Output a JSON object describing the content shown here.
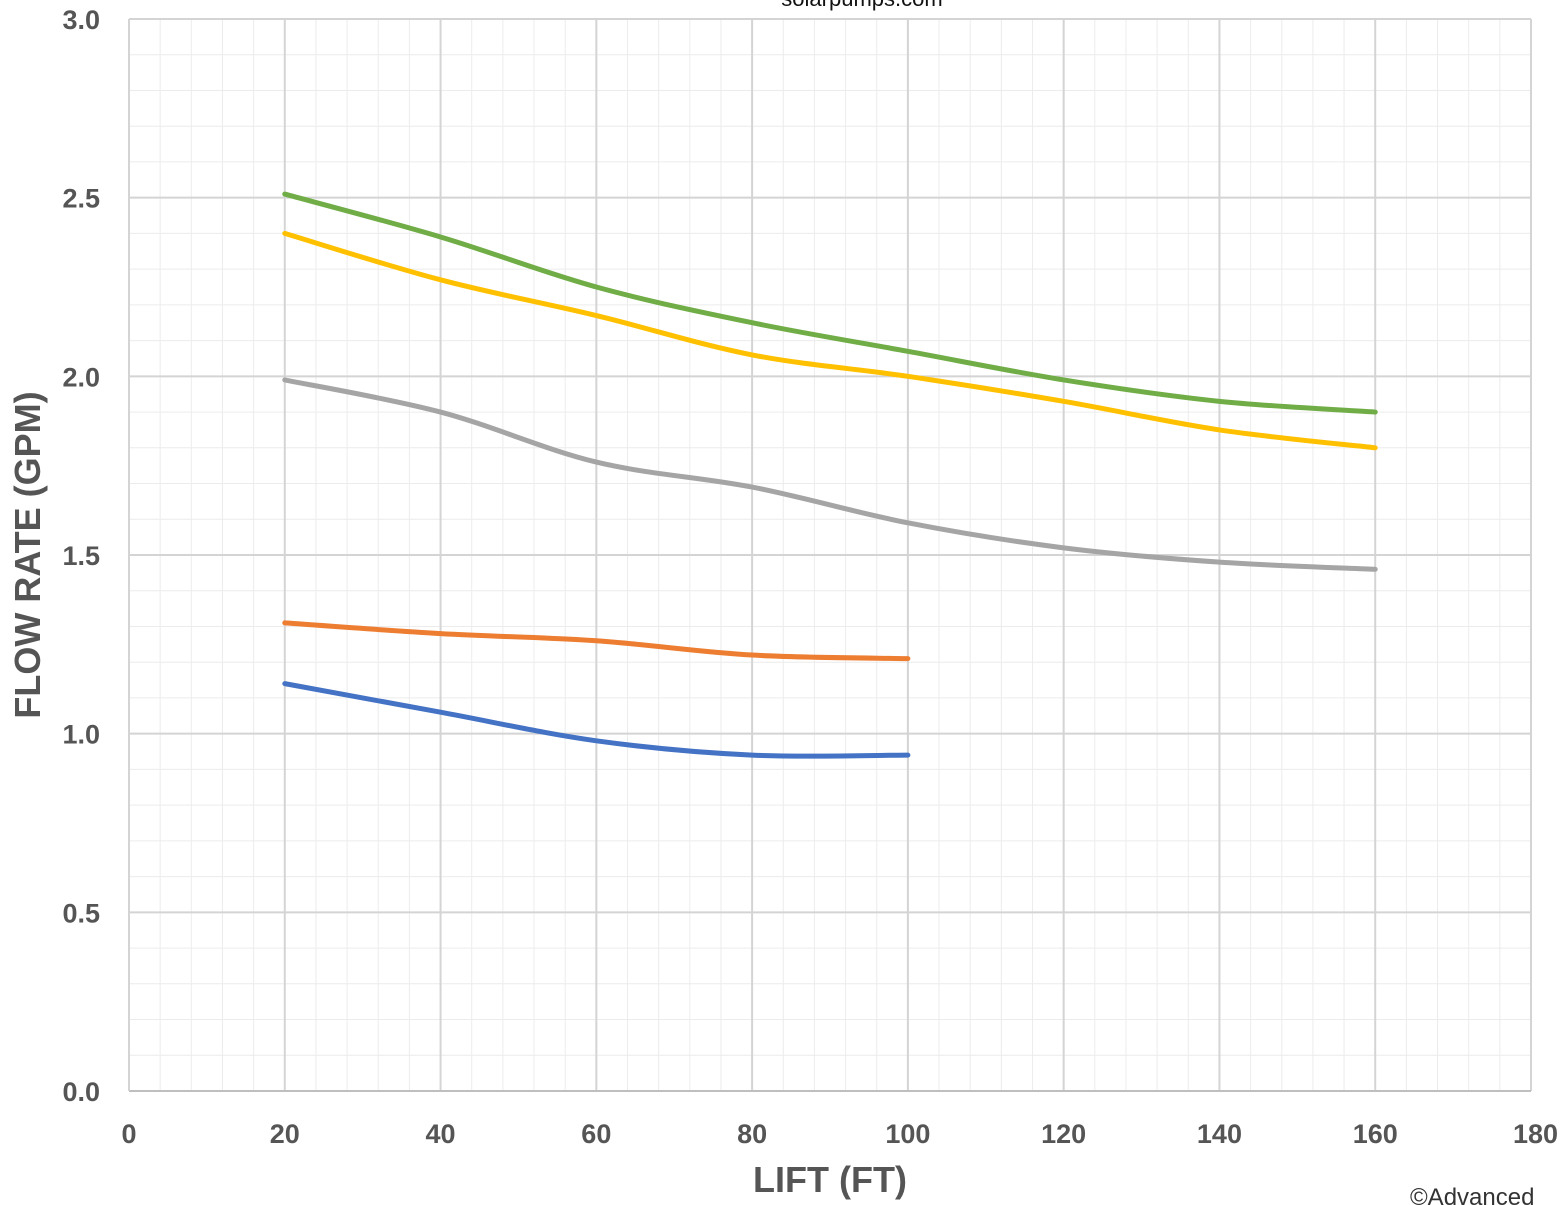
{
  "chart_data": {
    "type": "line",
    "title": "solarpumps.com",
    "credit": "©Advanced",
    "xlabel": "LIFT (FT)",
    "ylabel": "FLOW RATE (GPM)",
    "xlim": [
      0,
      180
    ],
    "ylim": [
      0,
      3.0
    ],
    "x_ticks": [
      "0",
      "20",
      "40",
      "60",
      "80",
      "100",
      "120",
      "140",
      "160",
      "180"
    ],
    "y_ticks": [
      "0.0",
      "0.5",
      "1.0",
      "1.5",
      "2.0",
      "2.5",
      "3.0"
    ],
    "grid": true,
    "legend": "none",
    "series": [
      {
        "color": "#70AD47",
        "x": [
          20,
          40,
          60,
          80,
          100,
          120,
          140,
          160
        ],
        "values": [
          2.51,
          2.39,
          2.25,
          2.15,
          2.07,
          1.99,
          1.93,
          1.9
        ]
      },
      {
        "color": "#FFC000",
        "x": [
          20,
          40,
          60,
          80,
          100,
          120,
          140,
          160
        ],
        "values": [
          2.4,
          2.27,
          2.17,
          2.06,
          2.0,
          1.93,
          1.85,
          1.8
        ]
      },
      {
        "color": "#A5A5A5",
        "x": [
          20,
          40,
          60,
          80,
          100,
          120,
          140,
          160
        ],
        "values": [
          1.99,
          1.9,
          1.76,
          1.69,
          1.59,
          1.52,
          1.48,
          1.46
        ]
      },
      {
        "color": "#ED7D31",
        "x": [
          20,
          40,
          60,
          80,
          100
        ],
        "values": [
          1.31,
          1.28,
          1.26,
          1.22,
          1.21
        ]
      },
      {
        "color": "#4472C4",
        "x": [
          20,
          40,
          60,
          80,
          100
        ],
        "values": [
          1.14,
          1.06,
          0.98,
          0.94,
          0.94
        ]
      }
    ]
  }
}
